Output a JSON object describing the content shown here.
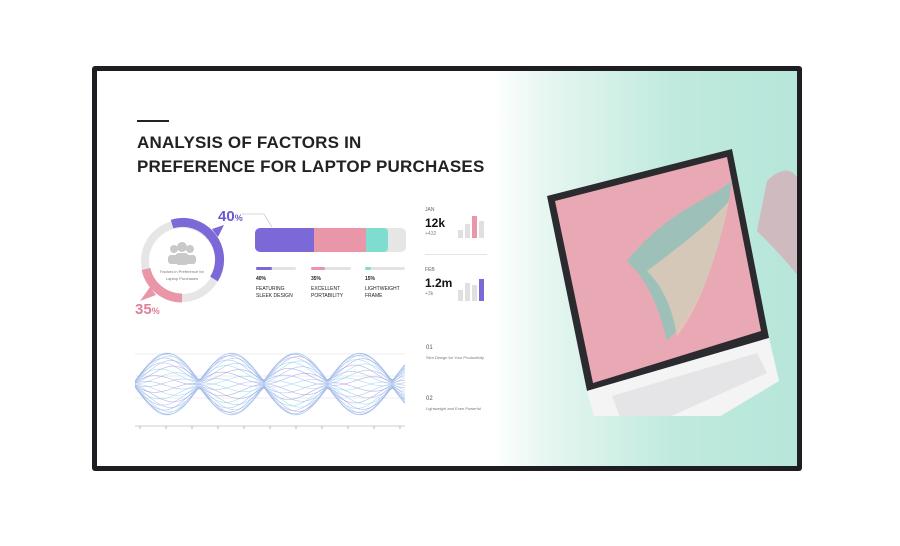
{
  "title_lines": [
    "ANALYSIS OF FACTORS IN",
    "PREFERENCE FOR LAPTOP PURCHASES"
  ],
  "donut": {
    "center_text": "Factors in Preference for Laptop Purchases",
    "top_value": "40",
    "bottom_value": "35",
    "unit": "%",
    "icon": "people-group-icon"
  },
  "factors": [
    {
      "percent": "40%",
      "label_1": "FEATURING",
      "label_2": "SLEEK DESIGN",
      "color": "#7d68d8",
      "value": 40
    },
    {
      "percent": "35%",
      "label_1": "EXCELLENT",
      "label_2": "PORTABILITY",
      "color": "#e896a8",
      "value": 35
    },
    {
      "percent": "15%",
      "label_1": "LIGHTWEIGHT",
      "label_2": "FRAME",
      "color": "#7fddcf",
      "value": 15
    }
  ],
  "stats": [
    {
      "month": "JAN",
      "value": "12k",
      "delta": "+432",
      "accent": "#e896a8"
    },
    {
      "month": "FEB",
      "value": "1.2m",
      "delta": "+3k",
      "accent": "#7d68d8"
    }
  ],
  "notes": [
    {
      "num": "01",
      "text": "Slim Design for Your Productivity"
    },
    {
      "num": "02",
      "text": "Lightweight and Even Powerful"
    }
  ]
}
